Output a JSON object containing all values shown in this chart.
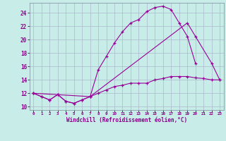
{
  "xlabel": "Windchill (Refroidissement éolien,°C)",
  "bg_color": "#c8ece8",
  "grid_color": "#aab8cc",
  "line_color": "#990099",
  "xlim": [
    -0.5,
    23.5
  ],
  "ylim": [
    9.5,
    25.5
  ],
  "yticks": [
    10,
    12,
    14,
    16,
    18,
    20,
    22,
    24
  ],
  "xticks": [
    0,
    1,
    2,
    3,
    4,
    5,
    6,
    7,
    8,
    9,
    10,
    11,
    12,
    13,
    14,
    15,
    16,
    17,
    18,
    19,
    20,
    21,
    22,
    23
  ],
  "series1_x": [
    0,
    1,
    2,
    3,
    4,
    5,
    6,
    7,
    8,
    9,
    10,
    11,
    12,
    13,
    14,
    15,
    16,
    17,
    18,
    19,
    20
  ],
  "series1_y": [
    12.0,
    11.5,
    11.0,
    11.8,
    10.8,
    10.5,
    11.0,
    11.5,
    15.5,
    17.5,
    19.5,
    21.2,
    22.5,
    23.0,
    24.2,
    24.8,
    25.0,
    24.5,
    22.5,
    20.5,
    16.5
  ],
  "series2_x": [
    0,
    1,
    2,
    3,
    4,
    5,
    6,
    7,
    8,
    9,
    10,
    11,
    12,
    13,
    14,
    15,
    16,
    17,
    18,
    19,
    20,
    21,
    22,
    23
  ],
  "series2_y": [
    12.0,
    11.5,
    11.0,
    11.8,
    10.8,
    10.5,
    11.0,
    11.5,
    12.0,
    12.5,
    13.0,
    13.2,
    13.5,
    13.5,
    13.5,
    14.0,
    14.2,
    14.5,
    14.5,
    14.5,
    14.3,
    14.2,
    14.0,
    14.0
  ],
  "series3_x": [
    0,
    7,
    19,
    20,
    22,
    23
  ],
  "series3_y": [
    12.0,
    11.5,
    22.5,
    20.5,
    16.5,
    14.0
  ]
}
